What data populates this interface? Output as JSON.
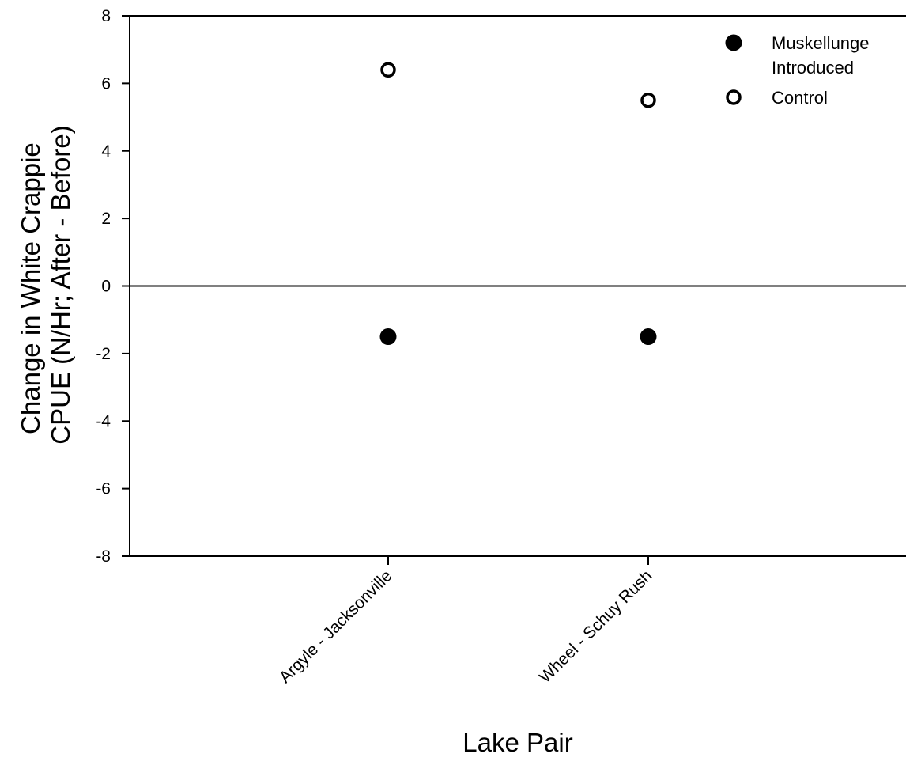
{
  "chart_data": {
    "type": "scatter",
    "categories": [
      "Argyle - Jacksonville",
      "Wheel - Schuy Rush"
    ],
    "series": [
      {
        "name": "Muskellunge Introduced",
        "values": [
          -1.5,
          -1.5
        ],
        "marker": "filled-circle"
      },
      {
        "name": "Control",
        "values": [
          6.4,
          5.5
        ],
        "marker": "open-circle"
      }
    ],
    "xlabel": "Lake Pair",
    "ylabel": "Change in White Crappie CPUE (N/Hr; After - Before)",
    "ylabel_lines": [
      "Change in White Crappie",
      "CPUE (N/Hr; After - Before)"
    ],
    "ylim": [
      -8,
      8
    ],
    "yticks": [
      "-8",
      "-6",
      "-4",
      "-2",
      "0",
      "2",
      "4",
      "6",
      "8"
    ],
    "reference_line": 0,
    "grid": false,
    "legend_position": "top-right",
    "legend_lines": [
      [
        "Muskellunge",
        "Introduced"
      ],
      [
        "Control"
      ]
    ]
  }
}
